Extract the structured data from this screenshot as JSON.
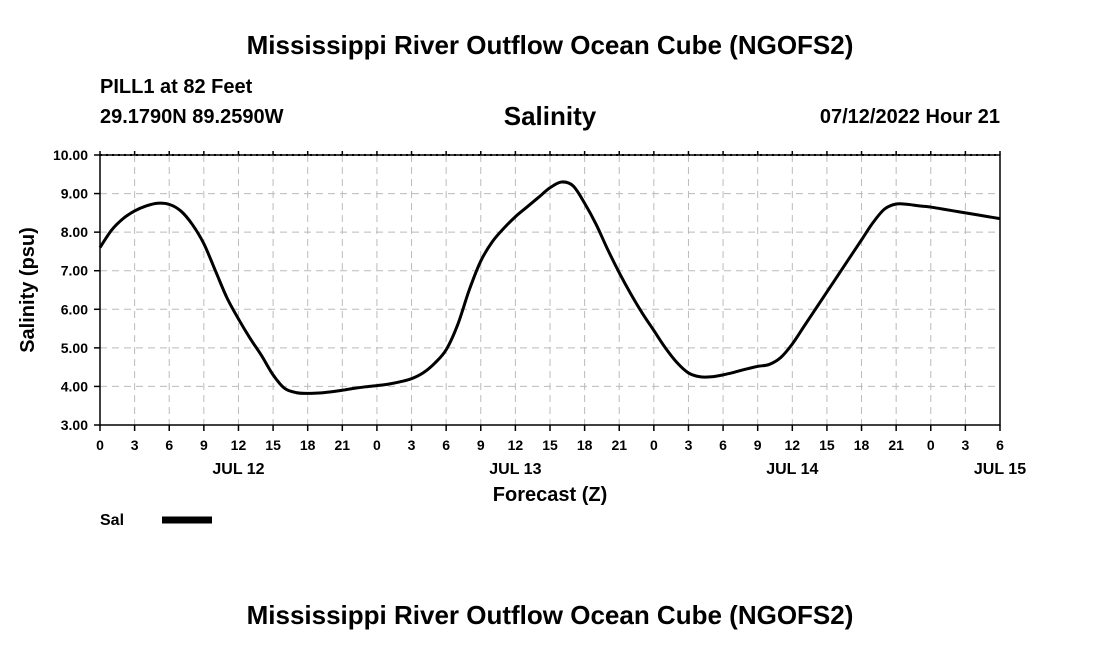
{
  "header": {
    "title": "Mississippi River Outflow Ocean Cube (NGOFS2)",
    "station": "PILL1 at 82 Feet",
    "coords": "29.1790N  89.2590W",
    "chart_title": "Salinity",
    "datetime": "07/12/2022 Hour 21"
  },
  "footer": {
    "title": "Mississippi River Outflow Ocean Cube (NGOFS2)"
  },
  "chart_data": {
    "type": "line",
    "title": "Salinity",
    "xlabel": "Forecast (Z)",
    "ylabel": "Salinity (psu)",
    "ylim": [
      3,
      10
    ],
    "yticks": [
      "3.00",
      "4.00",
      "5.00",
      "6.00",
      "7.00",
      "8.00",
      "9.00",
      "10.00"
    ],
    "xlim": [
      0,
      78
    ],
    "xtick_labels": [
      "0",
      "3",
      "6",
      "9",
      "12",
      "15",
      "18",
      "21",
      "0",
      "3",
      "6",
      "9",
      "12",
      "15",
      "18",
      "21",
      "0",
      "3",
      "6",
      "9",
      "12",
      "15",
      "18",
      "21",
      "0",
      "3",
      "6"
    ],
    "date_labels": [
      {
        "label": "JUL 12",
        "hour": 12
      },
      {
        "label": "JUL 13",
        "hour": 36
      },
      {
        "label": "JUL 14",
        "hour": 60
      },
      {
        "label": "JUL 15",
        "hour": 78
      }
    ],
    "grid": true,
    "legend": "bottom-left",
    "series": [
      {
        "name": "Sal",
        "color": "#000000",
        "x": [
          0,
          1,
          2,
          3,
          4,
          5,
          6,
          7,
          8,
          9,
          10,
          11,
          12,
          13,
          14,
          15,
          16,
          17,
          18,
          19,
          20,
          21,
          22,
          23,
          24,
          25,
          26,
          27,
          28,
          29,
          30,
          31,
          32,
          33,
          34,
          35,
          36,
          37,
          38,
          39,
          40,
          41,
          42,
          43,
          44,
          45,
          46,
          47,
          48,
          49,
          50,
          51,
          52,
          53,
          54,
          55,
          56,
          57,
          58,
          59,
          60,
          61,
          62,
          63,
          64,
          65,
          66,
          67,
          68,
          69,
          70,
          71,
          72,
          73,
          74,
          75,
          76,
          77,
          78
        ],
        "values": [
          7.6,
          8.05,
          8.35,
          8.55,
          8.68,
          8.75,
          8.72,
          8.55,
          8.2,
          7.7,
          7.0,
          6.3,
          5.75,
          5.25,
          4.8,
          4.3,
          3.95,
          3.84,
          3.82,
          3.83,
          3.86,
          3.9,
          3.95,
          3.99,
          4.02,
          4.06,
          4.12,
          4.2,
          4.35,
          4.6,
          4.95,
          5.6,
          6.5,
          7.25,
          7.75,
          8.1,
          8.4,
          8.65,
          8.9,
          9.15,
          9.3,
          9.2,
          8.75,
          8.2,
          7.55,
          6.95,
          6.4,
          5.9,
          5.45,
          5.0,
          4.62,
          4.35,
          4.25,
          4.25,
          4.3,
          4.37,
          4.45,
          4.52,
          4.57,
          4.75,
          5.1,
          5.55,
          6.0,
          6.45,
          6.9,
          7.35,
          7.8,
          8.25,
          8.6,
          8.73,
          8.72,
          8.68,
          8.65,
          8.6,
          8.55,
          8.5,
          8.45,
          8.4,
          8.35
        ]
      }
    ]
  }
}
